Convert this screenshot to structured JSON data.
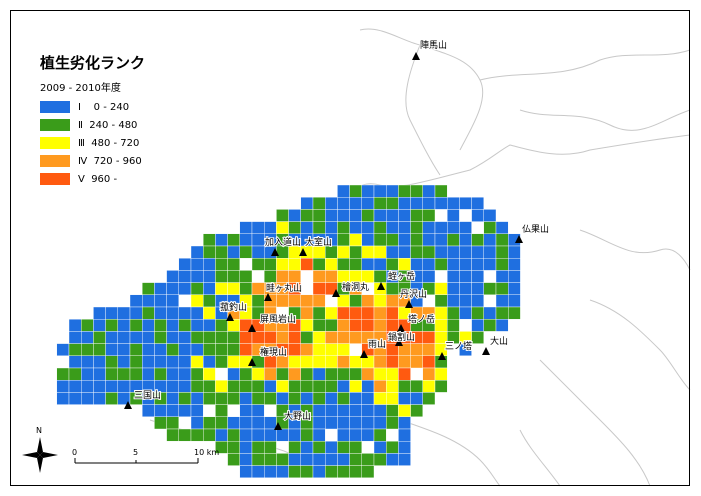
{
  "legend": {
    "title": "植生劣化ランク",
    "subtitle": "2009 - 2010年度",
    "items": [
      {
        "rank": "Ⅰ",
        "range": "  0 - 240",
        "color": "#1f6fe0"
      },
      {
        "rank": "Ⅱ",
        "range": "240 - 480",
        "color": "#3a9c1a"
      },
      {
        "rank": "Ⅲ",
        "range": "480 - 720",
        "color": "#ffff00"
      },
      {
        "rank": "Ⅳ",
        "range": "720 - 960",
        "color": "#ff9a1f"
      },
      {
        "rank": "Ⅴ",
        "range": "960 -",
        "color": "#ff5a10"
      }
    ]
  },
  "peaks": [
    "陣馬山",
    "加入道山",
    "大室山",
    "仏果山",
    "蛭ヶ岳",
    "檜洞丸",
    "丹沢山",
    "畦ヶ丸山",
    "菰釣山",
    "屏風岩山",
    "塔ノ岳",
    "鍋割山",
    "雨山",
    "三ノ塔",
    "大山",
    "権現山",
    "三国山",
    "大野山"
  ],
  "north_label": "N",
  "scale": {
    "ticks": [
      "0",
      "5",
      "10 km"
    ]
  }
}
